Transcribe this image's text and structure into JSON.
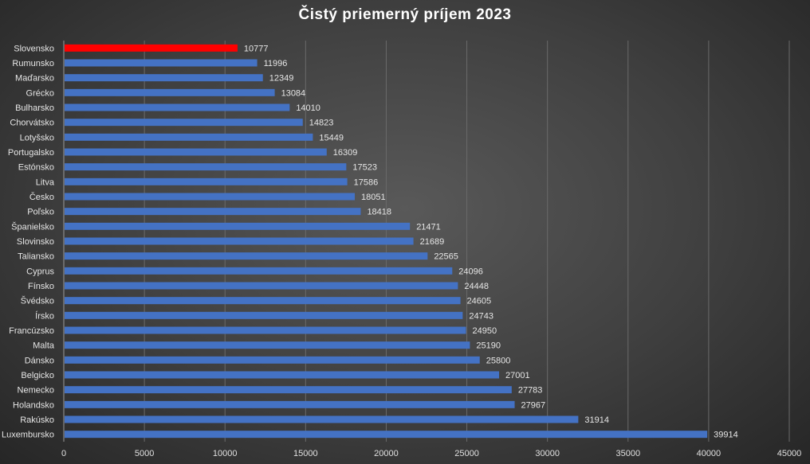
{
  "chart_data": {
    "type": "bar",
    "orientation": "horizontal",
    "title": "Čistý priemerný príjem 2023",
    "xlabel": "",
    "ylabel": "",
    "xlim": [
      0,
      45000
    ],
    "x_ticks": [
      0,
      5000,
      10000,
      15000,
      20000,
      25000,
      30000,
      35000,
      40000,
      45000
    ],
    "grid": true,
    "highlight_color": "#ff0000",
    "bar_color": "#4472c4",
    "categories": [
      "Slovensko",
      "Rumunsko",
      "Maďarsko",
      "Grécko",
      "Bulharsko",
      "Chorvátsko",
      "Lotyšsko",
      "Portugalsko",
      "Estónsko",
      "Litva",
      "Česko",
      "Poľsko",
      "Španielsko",
      "Slovinsko",
      "Taliansko",
      "Cyprus",
      "Fínsko",
      "Švédsko",
      "Írsko",
      "Francúzsko",
      "Malta",
      "Dánsko",
      "Belgicko",
      "Nemecko",
      "Holandsko",
      "Rakúsko",
      "Luxembursko"
    ],
    "values": [
      10777,
      11996,
      12349,
      13084,
      14010,
      14823,
      15449,
      16309,
      17523,
      17586,
      18051,
      18418,
      21471,
      21689,
      22565,
      24096,
      24448,
      24605,
      24743,
      24950,
      25190,
      25800,
      27001,
      27783,
      27967,
      31914,
      39914
    ],
    "highlighted": [
      "Slovensko"
    ]
  }
}
